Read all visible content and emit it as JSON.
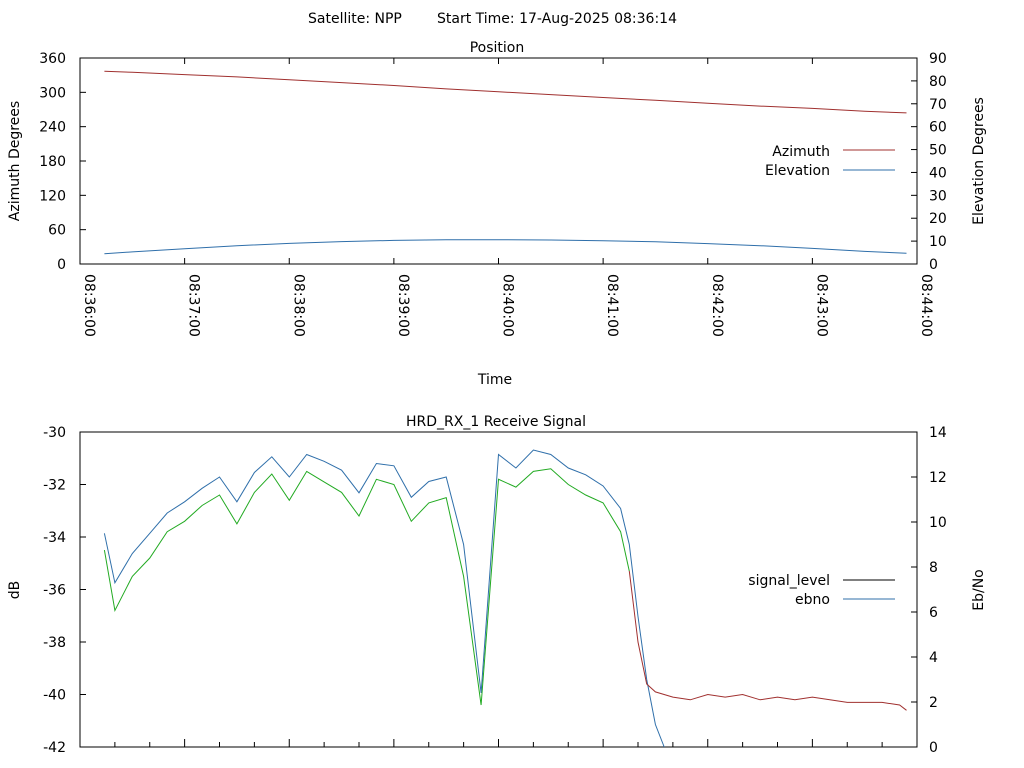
{
  "header": {
    "satellite_label": "Satellite: NPP",
    "start_time_label": "Start Time: 17-Aug-2025 08:36:14"
  },
  "chart_data": [
    {
      "type": "line",
      "title": "Position",
      "xlabel": "Time",
      "ylabel": "Azimuth Degrees",
      "y2label": "Elevation Degrees",
      "xlim": [
        "08:36:00",
        "08:44:00"
      ],
      "xticks": [
        "08:36:00",
        "08:37:00",
        "08:38:00",
        "08:39:00",
        "08:40:00",
        "08:41:00",
        "08:42:00",
        "08:43:00",
        "08:44:00"
      ],
      "ylim": [
        0,
        360
      ],
      "yticks": [
        0,
        60,
        120,
        180,
        240,
        300,
        360
      ],
      "y2lim": [
        0,
        90
      ],
      "y2ticks": [
        0,
        10,
        20,
        30,
        40,
        50,
        60,
        70,
        80,
        90
      ],
      "legend_position": "right",
      "series": [
        {
          "name": "Azimuth",
          "axis": "left",
          "color": "#a0302f",
          "x": [
            "08:36:14",
            "08:36:30",
            "08:37:00",
            "08:37:30",
            "08:38:00",
            "08:38:30",
            "08:39:00",
            "08:39:30",
            "08:40:00",
            "08:40:30",
            "08:41:00",
            "08:41:30",
            "08:42:00",
            "08:42:30",
            "08:43:00",
            "08:43:30",
            "08:43:54"
          ],
          "values": [
            337,
            335,
            331,
            327,
            322,
            317,
            312,
            306,
            301,
            296,
            291,
            286,
            281,
            276,
            272,
            267,
            264
          ]
        },
        {
          "name": "Elevation",
          "axis": "right",
          "color": "#2f6faa",
          "x": [
            "08:36:14",
            "08:36:30",
            "08:37:00",
            "08:37:30",
            "08:38:00",
            "08:38:30",
            "08:39:00",
            "08:39:30",
            "08:40:00",
            "08:40:30",
            "08:41:00",
            "08:41:30",
            "08:42:00",
            "08:42:30",
            "08:43:00",
            "08:43:30",
            "08:43:54"
          ],
          "values": [
            4.5,
            5.3,
            6.7,
            8.0,
            9.0,
            9.8,
            10.3,
            10.6,
            10.6,
            10.5,
            10.2,
            9.7,
            8.9,
            8.0,
            6.8,
            5.5,
            4.7
          ]
        }
      ]
    },
    {
      "type": "line",
      "title": "HRD_RX_1 Receive Signal",
      "ylabel": "dB",
      "y2label": "Eb/No",
      "ylim": [
        -42,
        -30
      ],
      "yticks": [
        -42,
        -40,
        -38,
        -36,
        -34,
        -32,
        -30
      ],
      "y2lim": [
        0,
        14
      ],
      "y2ticks": [
        0,
        2,
        4,
        6,
        8,
        10,
        12,
        14
      ],
      "xlim": [
        "08:36:00",
        "08:44:00"
      ],
      "legend_position": "right",
      "series": [
        {
          "name": "signal_level",
          "legend_color": "#000000",
          "color": "#a0302f",
          "segment_colors": {
            "before": "#22aa22",
            "after": "#a0302f",
            "switch_x": "08:41:15"
          },
          "axis": "left",
          "x": [
            "08:36:14",
            "08:36:20",
            "08:36:30",
            "08:36:40",
            "08:36:50",
            "08:37:00",
            "08:37:10",
            "08:37:20",
            "08:37:30",
            "08:37:40",
            "08:37:50",
            "08:38:00",
            "08:38:10",
            "08:38:20",
            "08:38:30",
            "08:38:40",
            "08:38:50",
            "08:39:00",
            "08:39:10",
            "08:39:20",
            "08:39:30",
            "08:39:40",
            "08:39:50",
            "08:40:00",
            "08:40:10",
            "08:40:20",
            "08:40:30",
            "08:40:40",
            "08:40:50",
            "08:41:00",
            "08:41:10",
            "08:41:15",
            "08:41:20",
            "08:41:25",
            "08:41:30",
            "08:41:40",
            "08:41:50",
            "08:42:00",
            "08:42:10",
            "08:42:20",
            "08:42:30",
            "08:42:40",
            "08:42:50",
            "08:43:00",
            "08:43:10",
            "08:43:20",
            "08:43:30",
            "08:43:40",
            "08:43:50",
            "08:43:54"
          ],
          "values": [
            -34.5,
            -36.8,
            -35.5,
            -34.8,
            -33.8,
            -33.4,
            -32.8,
            -32.4,
            -33.5,
            -32.3,
            -31.6,
            -32.6,
            -31.5,
            -31.9,
            -32.3,
            -33.2,
            -31.8,
            -32.0,
            -33.4,
            -32.7,
            -32.5,
            -35.5,
            -40.4,
            -31.8,
            -32.1,
            -31.5,
            -31.4,
            -32.0,
            -32.4,
            -32.7,
            -33.8,
            -35.3,
            -38.0,
            -39.6,
            -39.9,
            -40.1,
            -40.2,
            -40.0,
            -40.1,
            -40.0,
            -40.2,
            -40.1,
            -40.2,
            -40.1,
            -40.2,
            -40.3,
            -40.3,
            -40.3,
            -40.4,
            -40.6
          ]
        },
        {
          "name": "ebno",
          "color": "#2f6faa",
          "axis": "right",
          "x": [
            "08:36:14",
            "08:36:20",
            "08:36:30",
            "08:36:40",
            "08:36:50",
            "08:37:00",
            "08:37:10",
            "08:37:20",
            "08:37:30",
            "08:37:40",
            "08:37:50",
            "08:38:00",
            "08:38:10",
            "08:38:20",
            "08:38:30",
            "08:38:40",
            "08:38:50",
            "08:39:00",
            "08:39:10",
            "08:39:20",
            "08:39:30",
            "08:39:40",
            "08:39:50",
            "08:40:00",
            "08:40:10",
            "08:40:20",
            "08:40:30",
            "08:40:40",
            "08:40:50",
            "08:41:00",
            "08:41:10",
            "08:41:15",
            "08:41:20",
            "08:41:25",
            "08:41:30",
            "08:41:35"
          ],
          "values": [
            9.5,
            7.3,
            8.6,
            9.5,
            10.4,
            10.9,
            11.5,
            12.0,
            10.9,
            12.2,
            12.9,
            12.0,
            13.0,
            12.7,
            12.3,
            11.3,
            12.6,
            12.5,
            11.1,
            11.8,
            12.0,
            9.0,
            2.4,
            13.0,
            12.4,
            13.2,
            13.0,
            12.4,
            12.1,
            11.6,
            10.6,
            9.0,
            5.8,
            3.0,
            1.0,
            0.0
          ]
        }
      ]
    }
  ]
}
